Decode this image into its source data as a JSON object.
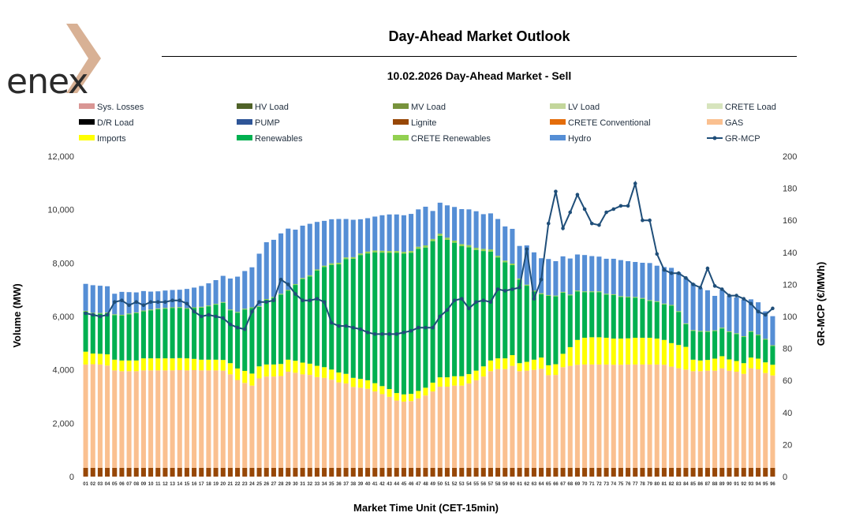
{
  "brand": {
    "logo_text": "enex"
  },
  "header": {
    "title": "Day-Ahead Market Outlook",
    "subtitle": "10.02.2026  Day-Ahead Market - Sell"
  },
  "chart_data": {
    "type": "bar",
    "stacked": true,
    "title": "Day-Ahead Market Outlook",
    "subtitle": "10.02.2026  Day-Ahead Market - Sell",
    "xlabel": "Market Time Unit (CET-15min)",
    "ylabel": "Volume (MW)",
    "y2label": "GR-MCP (€/MWh)",
    "ylim": [
      0,
      12000
    ],
    "y2lim": [
      0,
      200
    ],
    "y_ticks": [
      "0",
      "2,000",
      "4,000",
      "6,000",
      "8,000",
      "10,000",
      "12,000"
    ],
    "y2_ticks": [
      "0",
      "20",
      "40",
      "60",
      "80",
      "100",
      "120",
      "140",
      "160",
      "180",
      "200"
    ],
    "grid": false,
    "legend_position": "top",
    "categories": [
      "01",
      "02",
      "03",
      "04",
      "05",
      "06",
      "07",
      "08",
      "09",
      "10",
      "11",
      "12",
      "13",
      "14",
      "15",
      "16",
      "17",
      "18",
      "19",
      "20",
      "21",
      "22",
      "23",
      "24",
      "25",
      "26",
      "27",
      "28",
      "29",
      "30",
      "31",
      "32",
      "33",
      "34",
      "35",
      "36",
      "37",
      "38",
      "39",
      "40",
      "41",
      "42",
      "43",
      "44",
      "45",
      "46",
      "47",
      "48",
      "49",
      "50",
      "51",
      "52",
      "53",
      "54",
      "55",
      "56",
      "57",
      "58",
      "59",
      "60",
      "61",
      "62",
      "63",
      "64",
      "65",
      "66",
      "67",
      "68",
      "69",
      "70",
      "71",
      "72",
      "73",
      "74",
      "75",
      "76",
      "77",
      "78",
      "79",
      "80",
      "81",
      "82",
      "83",
      "84",
      "85",
      "86",
      "87",
      "88",
      "89",
      "90",
      "91",
      "92",
      "93",
      "94",
      "95",
      "96"
    ],
    "legend": [
      {
        "name": "Sys. Losses",
        "color": "#d99694",
        "marker": "bar"
      },
      {
        "name": "HV Load",
        "color": "#4f6228",
        "marker": "bar"
      },
      {
        "name": "MV Load",
        "color": "#77933c",
        "marker": "bar"
      },
      {
        "name": "LV Load",
        "color": "#c3d69b",
        "marker": "bar"
      },
      {
        "name": "CRETE Load",
        "color": "#d7e4bd",
        "marker": "bar"
      },
      {
        "name": "D/R Load",
        "color": "#000000",
        "marker": "bar"
      },
      {
        "name": "PUMP",
        "color": "#2e5597",
        "marker": "bar"
      },
      {
        "name": "Lignite",
        "color": "#974706",
        "marker": "bar"
      },
      {
        "name": "CRETE Conventional",
        "color": "#e46c0a",
        "marker": "bar"
      },
      {
        "name": "GAS",
        "color": "#fac090",
        "marker": "bar"
      },
      {
        "name": "Imports",
        "color": "#ffff00",
        "marker": "bar"
      },
      {
        "name": "Renewables",
        "color": "#00b050",
        "marker": "bar"
      },
      {
        "name": "CRETE Renewables",
        "color": "#92d050",
        "marker": "bar"
      },
      {
        "name": "Hydro",
        "color": "#558ed5",
        "marker": "bar"
      },
      {
        "name": "GR-MCP",
        "color": "#1f4e79",
        "marker": "line"
      }
    ],
    "series": [
      {
        "name": "Lignite",
        "color": "#974706",
        "values": [
          330,
          330,
          330,
          330,
          330,
          330,
          330,
          330,
          330,
          330,
          330,
          330,
          330,
          330,
          330,
          330,
          330,
          330,
          330,
          330,
          330,
          330,
          330,
          330,
          330,
          330,
          330,
          330,
          330,
          330,
          330,
          330,
          330,
          330,
          330,
          330,
          330,
          330,
          330,
          330,
          330,
          330,
          330,
          330,
          330,
          330,
          330,
          330,
          330,
          330,
          330,
          330,
          330,
          330,
          330,
          330,
          330,
          330,
          330,
          330,
          330,
          330,
          330,
          330,
          330,
          330,
          330,
          330,
          330,
          330,
          330,
          330,
          330,
          330,
          330,
          330,
          330,
          330,
          330,
          330,
          330,
          330,
          330,
          330,
          330,
          330,
          330,
          330,
          330,
          330,
          330,
          330,
          330,
          330,
          330,
          330
        ]
      },
      {
        "name": "GAS",
        "color": "#fac090",
        "values": [
          3870,
          3880,
          3870,
          3830,
          3650,
          3620,
          3620,
          3620,
          3650,
          3650,
          3650,
          3650,
          3650,
          3660,
          3650,
          3660,
          3650,
          3650,
          3650,
          3640,
          3500,
          3290,
          3180,
          3080,
          3350,
          3420,
          3420,
          3440,
          3600,
          3560,
          3500,
          3480,
          3400,
          3370,
          3300,
          3200,
          3160,
          3030,
          3000,
          2960,
          2860,
          2760,
          2660,
          2520,
          2480,
          2500,
          2600,
          2710,
          2860,
          3040,
          3040,
          3080,
          3080,
          3160,
          3280,
          3420,
          3620,
          3700,
          3700,
          3820,
          3620,
          3640,
          3670,
          3710,
          3470,
          3480,
          3770,
          3820,
          3860,
          3870,
          3870,
          3870,
          3870,
          3860,
          3860,
          3870,
          3870,
          3870,
          3870,
          3870,
          3860,
          3790,
          3730,
          3680,
          3620,
          3620,
          3640,
          3640,
          3730,
          3640,
          3600,
          3520,
          3730,
          3690,
          3550,
          3460
        ]
      },
      {
        "name": "Imports",
        "color": "#ffff00",
        "values": [
          480,
          400,
          400,
          420,
          400,
          400,
          400,
          400,
          450,
          450,
          450,
          450,
          450,
          450,
          450,
          420,
          400,
          400,
          400,
          400,
          420,
          430,
          450,
          450,
          450,
          450,
          450,
          450,
          450,
          450,
          440,
          420,
          420,
          400,
          380,
          370,
          360,
          340,
          330,
          320,
          310,
          300,
          290,
          280,
          270,
          270,
          280,
          290,
          330,
          350,
          350,
          350,
          350,
          350,
          360,
          380,
          400,
          400,
          400,
          400,
          300,
          330,
          380,
          420,
          370,
          400,
          500,
          700,
          930,
          1000,
          1020,
          1020,
          1000,
          980,
          980,
          980,
          1000,
          1000,
          1000,
          970,
          930,
          880,
          870,
          850,
          430,
          400,
          400,
          450,
          450,
          420,
          400,
          400,
          400,
          400,
          400,
          400
        ]
      },
      {
        "name": "Renewables",
        "color": "#00b050",
        "values": [
          1500,
          1500,
          1500,
          1540,
          1670,
          1680,
          1730,
          1770,
          1760,
          1800,
          1840,
          1860,
          1880,
          1880,
          1850,
          1900,
          1950,
          2000,
          2060,
          2140,
          1980,
          2090,
          2300,
          2450,
          2230,
          2420,
          2500,
          2600,
          2580,
          2840,
          3130,
          3270,
          3570,
          3750,
          3920,
          4050,
          4300,
          4460,
          4640,
          4750,
          4900,
          5000,
          5100,
          5250,
          5270,
          5280,
          5320,
          5250,
          5300,
          5300,
          5150,
          5000,
          4870,
          4750,
          4520,
          4320,
          4080,
          3780,
          3600,
          3370,
          3130,
          2850,
          2550,
          2370,
          2600,
          2540,
          2290,
          1940,
          1820,
          1710,
          1690,
          1690,
          1620,
          1630,
          1560,
          1530,
          1500,
          1460,
          1380,
          1370,
          1330,
          1400,
          1240,
          850,
          1080,
          1080,
          1050,
          1030,
          1040,
          1020,
          1010,
          980,
          960,
          870,
          850,
          700
        ]
      },
      {
        "name": "CRETE Renewables",
        "color": "#92d050",
        "values": [
          30,
          30,
          30,
          30,
          30,
          30,
          30,
          30,
          30,
          30,
          30,
          30,
          30,
          30,
          30,
          30,
          30,
          30,
          30,
          30,
          30,
          30,
          30,
          30,
          30,
          30,
          30,
          30,
          30,
          30,
          40,
          40,
          40,
          50,
          60,
          60,
          60,
          60,
          60,
          70,
          70,
          70,
          70,
          70,
          70,
          70,
          80,
          80,
          80,
          80,
          80,
          80,
          80,
          80,
          80,
          80,
          80,
          60,
          60,
          60,
          40,
          40,
          40,
          40,
          30,
          30,
          30,
          30,
          30,
          30,
          30,
          30,
          30,
          30,
          30,
          30,
          30,
          30,
          30,
          30,
          30,
          30,
          30,
          30,
          30,
          30,
          30,
          30,
          30,
          30,
          30,
          30,
          30,
          30,
          30,
          30
        ]
      },
      {
        "name": "Hydro",
        "color": "#558ed5",
        "values": [
          1010,
          1030,
          1020,
          980,
          770,
          860,
          800,
          750,
          730,
          670,
          640,
          650,
          650,
          650,
          720,
          740,
          780,
          830,
          890,
          980,
          1160,
          1320,
          1410,
          1500,
          1960,
          2130,
          2140,
          2260,
          2300,
          2040,
          1960,
          1930,
          1780,
          1680,
          1650,
          1640,
          1440,
          1400,
          1280,
          1250,
          1270,
          1330,
          1370,
          1370,
          1370,
          1390,
          1400,
          1450,
          1050,
          1160,
          1210,
          1260,
          1310,
          1340,
          1370,
          1300,
          1350,
          1380,
          1280,
          1300,
          1220,
          1470,
          1430,
          1310,
          1350,
          1290,
          1330,
          1350,
          1350,
          1360,
          1320,
          1300,
          1310,
          1330,
          1350,
          1330,
          1310,
          1320,
          1390,
          1330,
          1370,
          1390,
          1450,
          1700,
          1740,
          1600,
          1530,
          1290,
          1420,
          1340,
          1340,
          1370,
          1190,
          1210,
          1030,
          1090
        ]
      }
    ],
    "mcp_series": {
      "name": "GR-MCP",
      "axis": "right",
      "color": "#1f4e79",
      "values": [
        102,
        101,
        100,
        101,
        109,
        110,
        107,
        109,
        107,
        109,
        109,
        109,
        110,
        110,
        108,
        103,
        100,
        101,
        100,
        99,
        95,
        93,
        92,
        103,
        109,
        109,
        110,
        123,
        120,
        114,
        110,
        110,
        111,
        109,
        96,
        94,
        94,
        93,
        92,
        90,
        89,
        89,
        89,
        89,
        90,
        91,
        93,
        93,
        93,
        100,
        104,
        110,
        111,
        105,
        109,
        110,
        109,
        117,
        116,
        117,
        118,
        142,
        111,
        123,
        158,
        178,
        155,
        165,
        176,
        167,
        158,
        157,
        165,
        167,
        169,
        169,
        183,
        160,
        160,
        139,
        129,
        127,
        127,
        124,
        120,
        118,
        130,
        119,
        117,
        113,
        113,
        111,
        108,
        103,
        101,
        105
      ]
    }
  }
}
